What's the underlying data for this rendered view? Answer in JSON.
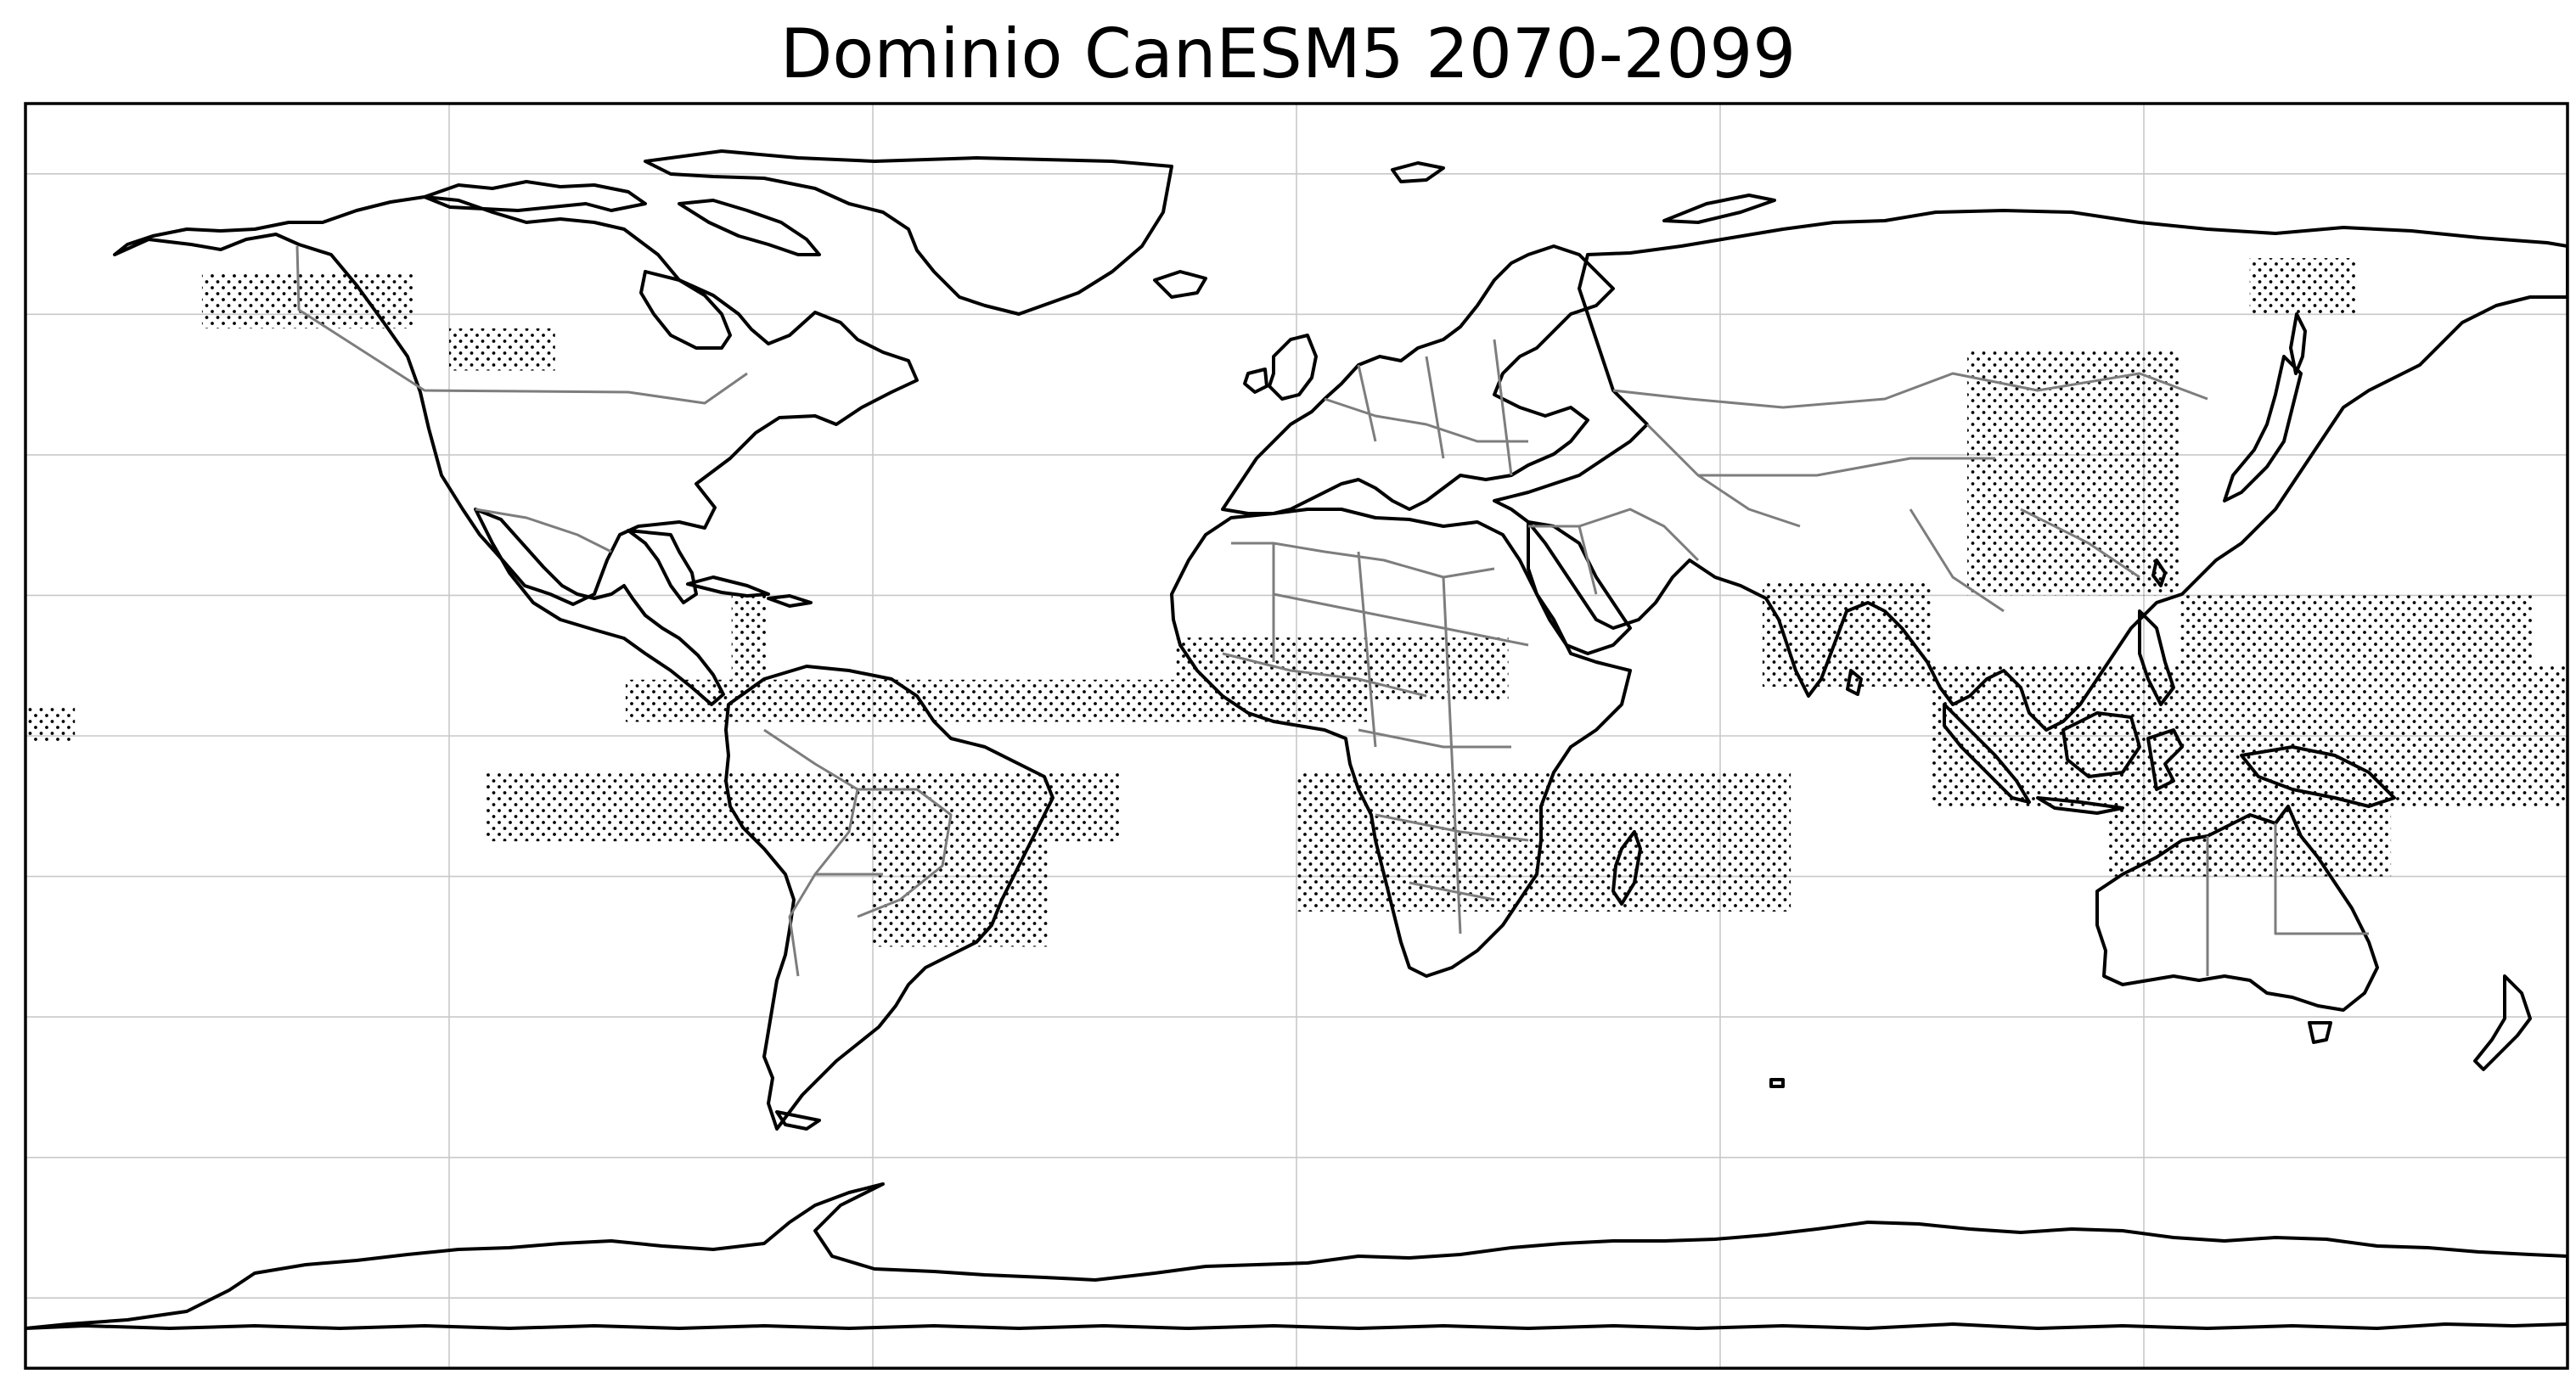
{
  "title": "Dominio CanESM5 2070-2099",
  "colors": {
    "coastline": "#000000",
    "borders": "#7d7d7d",
    "gridlines": "#c8c8c8",
    "stipple": "#000000"
  },
  "map": {
    "projection": "PlateCarree",
    "extent_lon": [
      -180,
      180
    ],
    "extent_lat": [
      -90,
      90
    ],
    "gridlines": true,
    "grid_lon": [
      -120,
      -60,
      0,
      60,
      120
    ],
    "grid_lat": [
      -80,
      -60,
      -40,
      -20,
      0,
      20,
      40,
      60,
      80
    ],
    "stipple_regions": [
      {
        "region": "central-america-tropical-atlantic",
        "lon": [
          -95,
          10
        ],
        "lat": [
          2,
          8
        ]
      },
      {
        "region": "mexico-caribbean",
        "lon": [
          -80,
          -75
        ],
        "lat": [
          8,
          20
        ]
      },
      {
        "region": "tropical-south-america",
        "lon": [
          -115,
          -25
        ],
        "lat": [
          -15,
          -5
        ]
      },
      {
        "region": "southern-brazil",
        "lon": [
          -60,
          -35
        ],
        "lat": [
          -30,
          -15
        ]
      },
      {
        "region": "east-pacific-equatorial",
        "lon": [
          -180,
          -173
        ],
        "lat": [
          -1,
          4
        ]
      },
      {
        "region": "sahel-west-africa",
        "lon": [
          -17,
          30
        ],
        "lat": [
          5,
          14
        ]
      },
      {
        "region": "southern-africa-indian-ocean",
        "lon": [
          0,
          70
        ],
        "lat": [
          -25,
          -5
        ]
      },
      {
        "region": "south-asia-bay-of-bengal",
        "lon": [
          66,
          90
        ],
        "lat": [
          7,
          22
        ]
      },
      {
        "region": "east-asia",
        "lon": [
          95,
          125
        ],
        "lat": [
          20,
          55
        ]
      },
      {
        "region": "west-pacific-warm-pool",
        "lon": [
          90,
          180
        ],
        "lat": [
          -10,
          10
        ]
      },
      {
        "region": "northwest-pacific",
        "lon": [
          125,
          175
        ],
        "lat": [
          10,
          20
        ]
      },
      {
        "region": "northeast-australia",
        "lon": [
          115,
          155
        ],
        "lat": [
          -20,
          -5
        ]
      },
      {
        "region": "siberia",
        "lon": [
          135,
          150
        ],
        "lat": [
          60,
          68
        ]
      },
      {
        "region": "alaska-canada",
        "lon": [
          -155,
          -125
        ],
        "lat": [
          58,
          66
        ]
      },
      {
        "region": "western-canada",
        "lon": [
          -120,
          -105
        ],
        "lat": [
          52,
          58
        ]
      }
    ]
  }
}
